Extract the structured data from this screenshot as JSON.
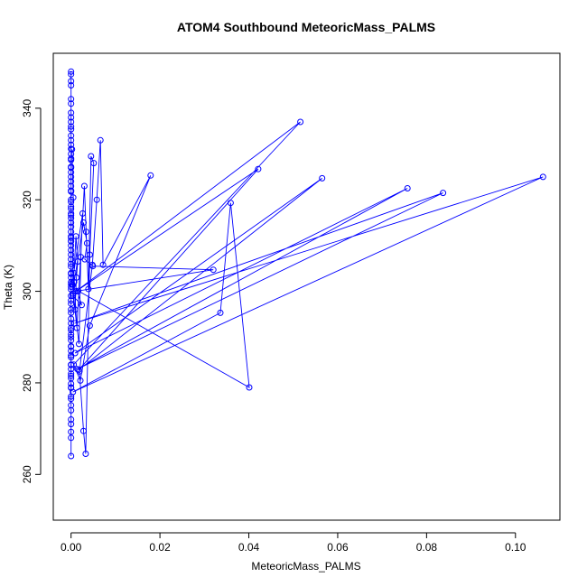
{
  "chart_data": {
    "type": "line",
    "title": "ATOM4 Southbound MeteoricMass_PALMS",
    "xlabel": "MeteoricMass_PALMS",
    "ylabel": "Theta (K)",
    "xlim": [
      -0.004,
      0.11
    ],
    "ylim": [
      250,
      352
    ],
    "xticks": [
      0.0,
      0.02,
      0.04,
      0.06,
      0.08,
      0.1
    ],
    "xtick_labels": [
      "0.00",
      "0.02",
      "0.04",
      "0.06",
      "0.08",
      "0.10"
    ],
    "yticks": [
      260,
      280,
      300,
      320,
      340
    ],
    "ytick_labels": [
      "260",
      "280",
      "300",
      "320",
      "340"
    ],
    "grid": false,
    "legend": "none",
    "series": [
      {
        "color": "#0000ff",
        "marker": "open-circle",
        "x": [
          0.0,
          0.0,
          0.0,
          0.0,
          0.0,
          0.0,
          0.0,
          0.0,
          0.0,
          0.0,
          0.0,
          0.0,
          0.0,
          0.0,
          0.0,
          0.0,
          0.0,
          0.0,
          0.0,
          0.0,
          0.0,
          0.0,
          0.0,
          0.0,
          0.0,
          0.0,
          0.0,
          0.0,
          0.0,
          0.0,
          0.0,
          0.0,
          0.0,
          0.0,
          0.0,
          0.0,
          0.0,
          0.0,
          0.0,
          0.0,
          0.0,
          0.0,
          0.0,
          0.0,
          0.0,
          0.0,
          0.0,
          0.0,
          0.0,
          0.0,
          0.0,
          0.0,
          0.0,
          0.0,
          0.0,
          0.0,
          0.0,
          0.0,
          0.0,
          0.0,
          0.0,
          0.0,
          0.0,
          0.0,
          0.0,
          0.0,
          0.0,
          0.0,
          0.0,
          0.0,
          0.0,
          0.0,
          0.0,
          0.0,
          0.0,
          0.0,
          0.0,
          0.0,
          0.0,
          0.0,
          0.0,
          0.0,
          0.0,
          0.0,
          0.0,
          0.0,
          0.0,
          0.0
        ],
        "y": [
          347.4,
          345.9,
          342.0,
          335.4,
          331.1,
          328.7,
          327.2,
          325.0,
          321.8,
          318.0,
          316.6,
          314.1,
          313.0,
          311.7,
          310.9,
          310.0,
          305.4,
          303.8,
          301.6,
          300.4,
          297.3,
          295.3,
          293.0,
          291.5,
          290.6,
          289.3,
          287.9,
          285.6,
          283.9,
          281.5,
          279.8,
          278.9,
          276.5,
          275.1,
          269.3,
          348.0,
          338.0,
          333.0,
          326.0,
          319.5,
          315.0,
          307.0,
          303.0,
          299.0,
          294.0,
          288.0,
          284.0,
          281.0,
          271.0,
          264.0,
          341.0,
          336.0,
          330.0,
          323.0,
          317.0,
          312.0,
          309.0,
          304.0,
          302.0,
          298.0,
          292.0,
          287.0,
          282.0,
          279.0,
          274.0,
          345.0,
          339.0,
          334.0,
          329.0,
          324.0,
          320.0,
          316.0,
          311.0,
          308.0,
          306.0,
          301.0,
          296.0,
          290.0,
          286.0,
          283.0,
          277.0,
          272.0,
          268.0,
          337.0,
          332.0,
          327.0,
          322.0,
          318.5
        ]
      },
      {
        "color": "#0000ff",
        "marker": "open-circle",
        "x": [
          0.0002,
          0.0005,
          0.0003,
          0.0009,
          0.0012,
          0.0015,
          0.0011,
          0.0004,
          0.0018,
          0.0022,
          0.0026,
          0.0006,
          0.0013,
          0.003,
          0.0034,
          0.0039,
          0.0045,
          0.0051,
          0.0042,
          0.0033,
          0.0028,
          0.0019,
          0.0048,
          0.0058,
          0.0066,
          0.0072,
          0.0179,
          0.0042,
          0.0021,
          0.0006,
          0.0516,
          0.0011,
          0.0421,
          0.0017,
          0.0565,
          0.0009,
          0.0757,
          0.0014,
          0.0837,
          0.0008,
          0.1062,
          0.0004,
          0.0336,
          0.0359,
          0.0401,
          0.0016,
          0.032,
          0.0049,
          0.0031,
          0.0036,
          0.0028,
          0.0007,
          0.0024,
          0.0004
        ],
        "y": [
          331.0,
          320.5,
          301.5,
          296.0,
          303.0,
          306.5,
          312.0,
          299.5,
          288.5,
          307.5,
          317.0,
          304.0,
          292.0,
          323.0,
          313.0,
          300.5,
          329.5,
          328.0,
          308.0,
          264.5,
          269.5,
          282.5,
          305.8,
          320.0,
          333.0,
          305.8,
          325.3,
          292.5,
          280.5,
          284.0,
          337.0,
          300.0,
          326.7,
          282.8,
          324.7,
          286.5,
          322.5,
          283.0,
          321.5,
          293.0,
          325.0,
          278.0,
          295.3,
          319.3,
          279.0,
          300.1,
          304.7,
          305.5,
          307.0,
          310.5,
          315.0,
          302.0,
          297.0,
          299.0
        ]
      }
    ]
  }
}
